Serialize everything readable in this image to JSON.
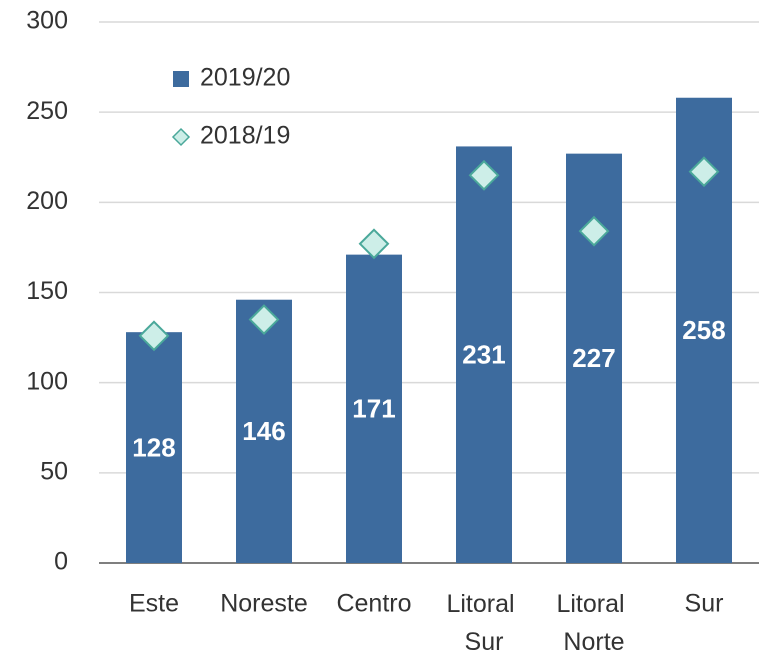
{
  "chart_data": {
    "type": "bar",
    "categories": [
      "Este",
      "Noreste",
      "Centro",
      "Litoral Sur",
      "Litoral Norte",
      "Sur"
    ],
    "series": [
      {
        "name": "2019/20",
        "color": "#3d6b9e",
        "type": "bar",
        "values": [
          128,
          146,
          171,
          231,
          227,
          258
        ]
      },
      {
        "name": "2018/19",
        "color": "#cdeee8",
        "type": "marker",
        "values": [
          126,
          135,
          177,
          215,
          184,
          217
        ]
      }
    ],
    "ylim": [
      0,
      300
    ],
    "yticks": [
      0,
      50,
      100,
      150,
      200,
      250,
      300
    ],
    "grid": true,
    "legend": "upper left"
  }
}
